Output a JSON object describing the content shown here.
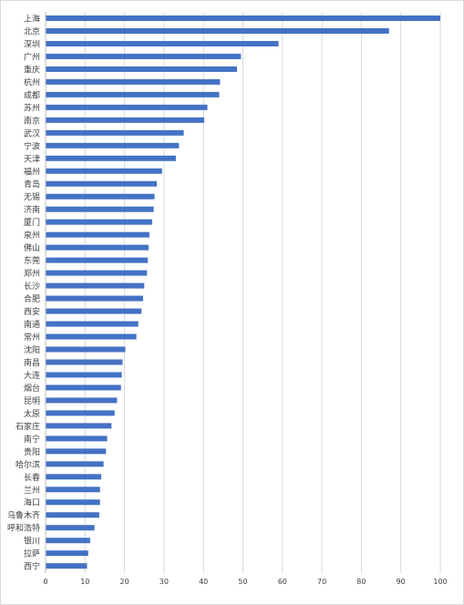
{
  "chart_data": {
    "type": "bar",
    "orientation": "horizontal",
    "title": "",
    "xlabel": "",
    "ylabel": "",
    "xlim": [
      0,
      100
    ],
    "x_ticks": [
      "0",
      "10",
      "20",
      "30",
      "40",
      "50",
      "60",
      "70",
      "80",
      "90",
      "100"
    ],
    "grid": "vertical",
    "legend": "none",
    "bar_color": "#4472C4",
    "grid_color": "#d9d9d9",
    "categories": [
      "上海",
      "北京",
      "深圳",
      "广州",
      "重庆",
      "杭州",
      "成都",
      "苏州",
      "南京",
      "武汉",
      "宁波",
      "天津",
      "福州",
      "青岛",
      "无锡",
      "济南",
      "厦门",
      "泉州",
      "佛山",
      "东莞",
      "郑州",
      "长沙",
      "合肥",
      "西安",
      "南通",
      "常州",
      "沈阳",
      "南昌",
      "大连",
      "烟台",
      "昆明",
      "太原",
      "石家庄",
      "南宁",
      "贵阳",
      "哈尔滨",
      "长春",
      "兰州",
      "海口",
      "乌鲁木齐",
      "呼和浩特",
      "银川",
      "拉萨",
      "西宁"
    ],
    "values": [
      100,
      87,
      59,
      49.5,
      48.5,
      44.2,
      44,
      41,
      40.2,
      35,
      33.8,
      33,
      29.5,
      28.2,
      27.6,
      27.4,
      27,
      26.3,
      26.1,
      25.9,
      25.7,
      25,
      24.7,
      24.3,
      23.5,
      23,
      20.2,
      19.5,
      19.3,
      19.1,
      18.1,
      17.5,
      16.7,
      15.6,
      15.3,
      14.7,
      14.1,
      13.8,
      13.8,
      13.6,
      12.4,
      11.3,
      10.8,
      10.5
    ]
  }
}
